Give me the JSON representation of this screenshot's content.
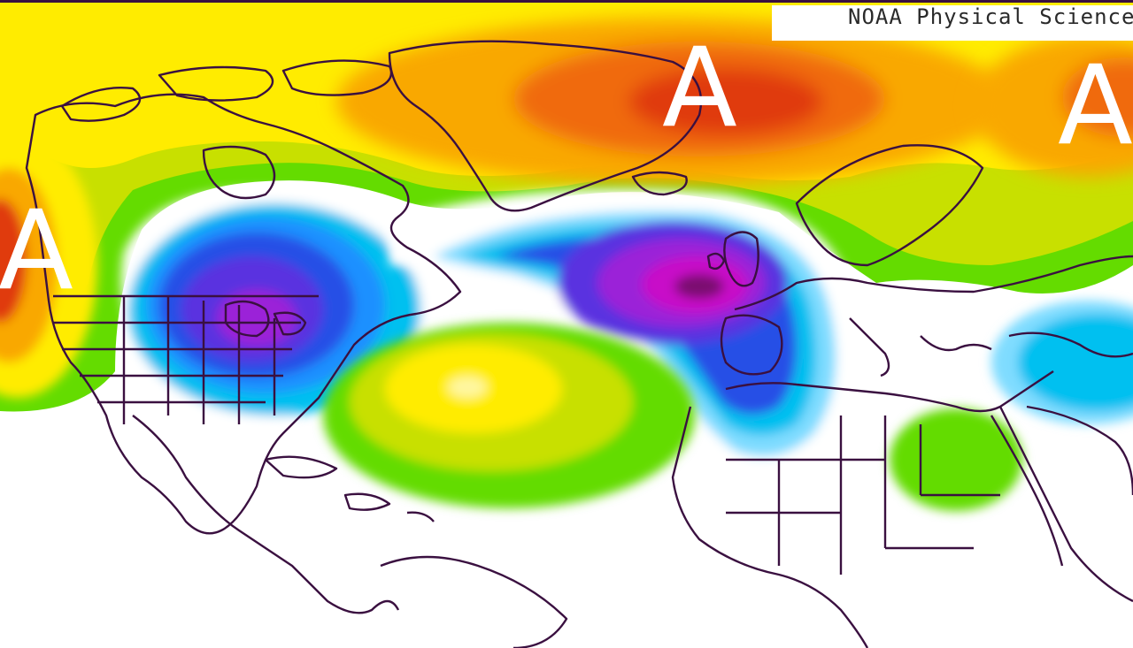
{
  "credit": "NOAA Physical Science",
  "anomaly_labels": [
    {
      "text": "A",
      "region": "Pacific Northwest"
    },
    {
      "text": "A",
      "region": "Greenland"
    },
    {
      "text": "A",
      "region": "Scandinavia"
    }
  ],
  "anomaly_centers": [
    {
      "name": "positive-anomaly-greenland",
      "sign": "positive"
    },
    {
      "name": "positive-anomaly-northeast-pacific",
      "sign": "positive"
    },
    {
      "name": "positive-anomaly-scandinavia",
      "sign": "positive"
    },
    {
      "name": "positive-anomaly-central-atlantic",
      "sign": "positive"
    },
    {
      "name": "negative-anomaly-great-lakes",
      "sign": "negative"
    },
    {
      "name": "negative-anomaly-eastern-atlantic",
      "sign": "negative"
    },
    {
      "name": "negative-anomaly-middle-east",
      "sign": "negative"
    }
  ],
  "colors": {
    "deep_red": "#e03a10",
    "orange_red": "#f06a10",
    "orange": "#f9a800",
    "yellow": "#ffec00",
    "yellow_green": "#c8e000",
    "green": "#64dc00",
    "white": "#ffffff",
    "light_cyan": "#7fdcff",
    "cyan": "#00c0f0",
    "sky_blue": "#1e90ff",
    "blue": "#2850e6",
    "indigo": "#5a30e0",
    "purple": "#9b20d8",
    "magenta": "#c810c8",
    "dark_purple": "#7a0a70",
    "coastline": "#3a1040"
  }
}
